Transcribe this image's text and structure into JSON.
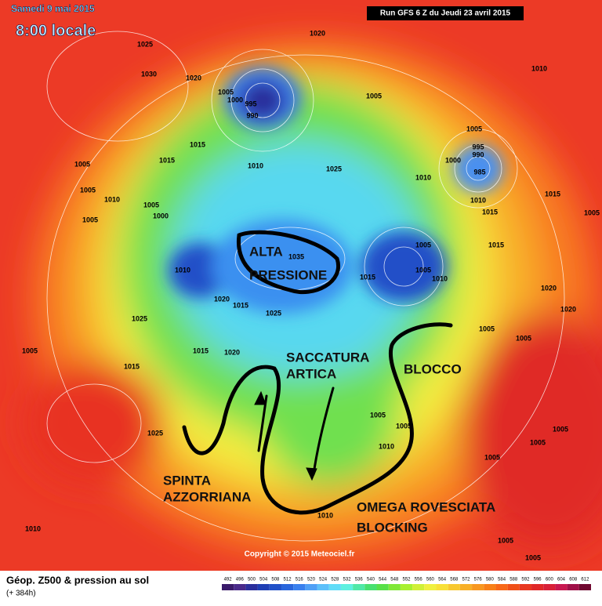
{
  "header": {
    "date": "Samedi 9 mai 2015",
    "time": "8:00 locale",
    "run": "Run GFS 6 Z du Jeudi 23 avril 2015"
  },
  "annotations": [
    {
      "lines": [
        "ALTA",
        "PRESSIONE"
      ]
    },
    {
      "lines": [
        "SACCATURA",
        "ARTICA"
      ]
    },
    {
      "lines": [
        "BLOCCO"
      ]
    },
    {
      "lines": [
        "SPINTA",
        "AZZORRIANA"
      ]
    },
    {
      "lines": [
        "OMEGA ROVESCIATA",
        "BLOCKING"
      ]
    }
  ],
  "isobar_labels": [
    1025,
    1030,
    1020,
    1020,
    1005,
    1000,
    995,
    990,
    1005,
    1010,
    1005,
    995,
    990,
    1000,
    985,
    1015,
    1015,
    1010,
    1025,
    1010,
    1005,
    1005,
    1010,
    1005,
    1005,
    1000,
    1015,
    1005,
    1010,
    1015,
    1015,
    1010,
    1035,
    1005,
    1005,
    1015,
    1010,
    1020,
    1015,
    1025,
    1020,
    1025,
    1005,
    1015,
    1020,
    1015,
    1005,
    1020,
    1005,
    1005,
    1005,
    1025,
    1010,
    1005,
    1005,
    1005,
    1010,
    1010,
    1005,
    1005
  ],
  "copyright": "Copyright © 2015 Meteociel.fr",
  "footer": {
    "title": "Géop. Z500 & pression au sol",
    "subtitle": "(+ 384h)"
  },
  "color_scale": {
    "values": [
      492,
      496,
      500,
      504,
      508,
      512,
      516,
      520,
      524,
      528,
      532,
      536,
      540,
      544,
      548,
      552,
      556,
      560,
      564,
      568,
      572,
      576,
      580,
      584,
      588,
      592,
      596,
      600,
      604,
      608,
      612
    ],
    "colors": [
      "#3a1a6a",
      "#4a2a8a",
      "#2b2f9c",
      "#1f3fb4",
      "#2050c8",
      "#2a66dc",
      "#3a80ee",
      "#4fa0f6",
      "#5cc0fa",
      "#60dcf8",
      "#5ef0e0",
      "#50e8a8",
      "#48e070",
      "#58e048",
      "#80e838",
      "#a8f030",
      "#d0f038",
      "#f0f040",
      "#f8e038",
      "#f8c830",
      "#f8b028",
      "#f89820",
      "#f88018",
      "#f86818",
      "#f05018",
      "#e83820",
      "#e02828",
      "#d82038",
      "#c81850",
      "#a01048",
      "#700830"
    ]
  }
}
